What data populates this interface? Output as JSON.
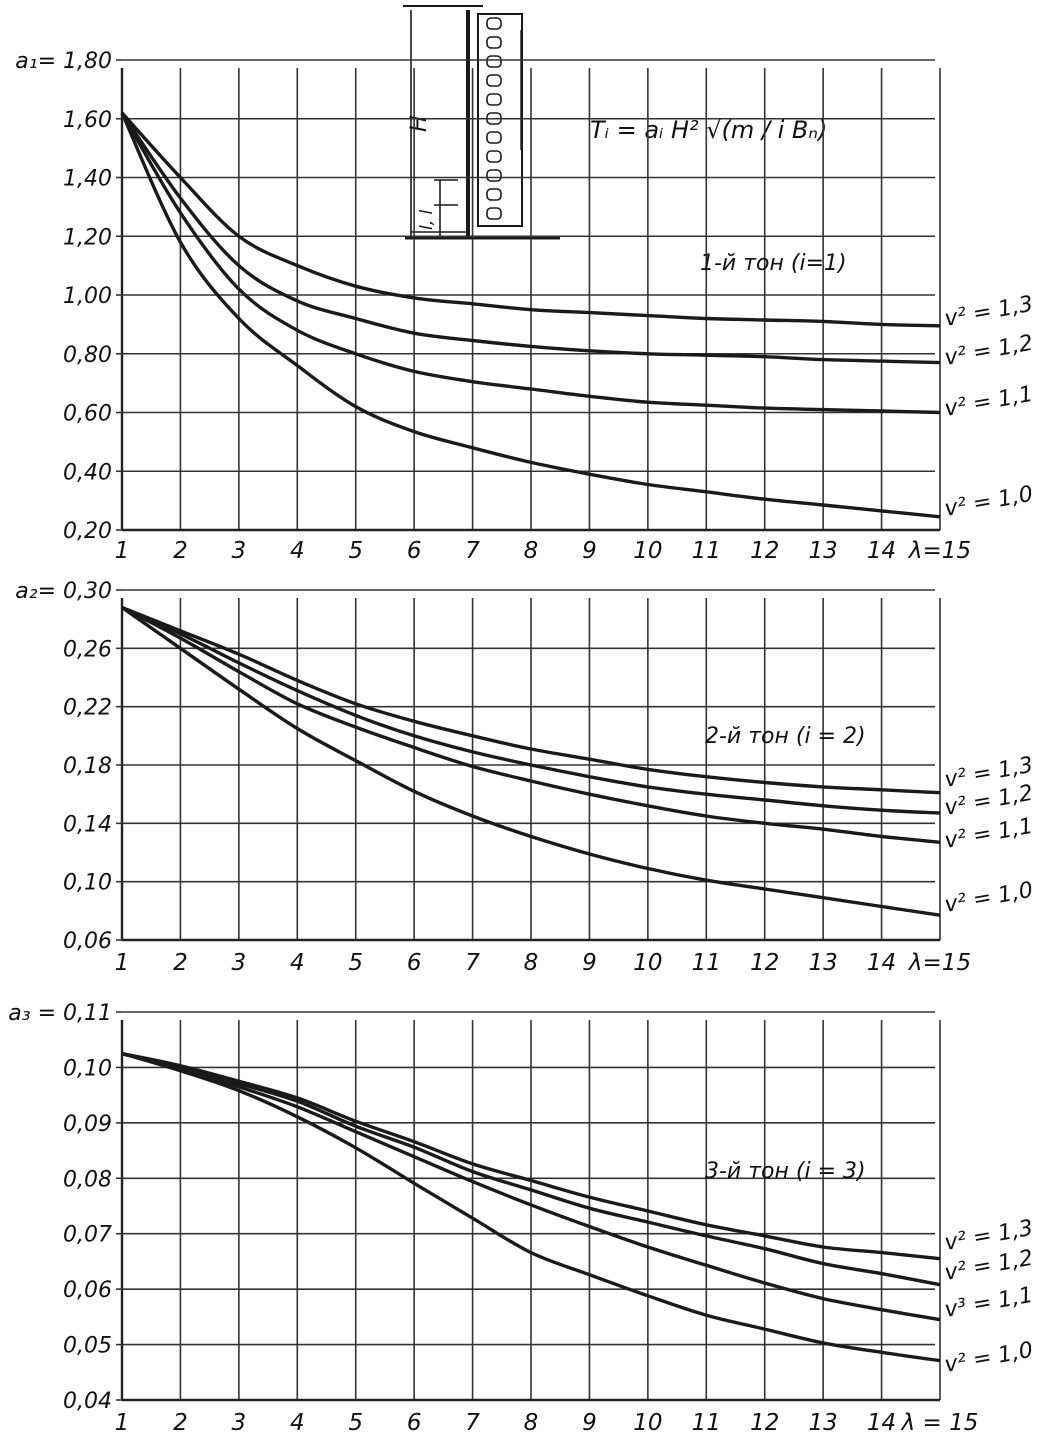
{
  "formula": "Tᵢ = aᵢ H² √(m / i Bₙ)",
  "inset": {
    "h_label": "H",
    "l_label": "l, l"
  },
  "chart_data": [
    {
      "type": "line",
      "title": "1-й тон (i=1)",
      "ylabel": "a₁",
      "xlabel": "λ",
      "x_ticks": [
        "1",
        "2",
        "3",
        "4",
        "5",
        "6",
        "7",
        "8",
        "9",
        "10",
        "11",
        "12",
        "13",
        "14",
        "λ=15"
      ],
      "y_ticks": [
        "0,20",
        "0,40",
        "0,60",
        "0,80",
        "1,00",
        "1,20",
        "1,40",
        "1,60",
        "a₁= 1,80"
      ],
      "ylim": [
        0.2,
        1.8
      ],
      "xlim": [
        1,
        15
      ],
      "grid": true,
      "x": [
        1,
        2,
        3,
        4,
        5,
        6,
        7,
        8,
        9,
        10,
        11,
        12,
        13,
        14,
        15
      ],
      "series": [
        {
          "name": "v² = 1,3",
          "values": [
            1.62,
            1.4,
            1.2,
            1.1,
            1.03,
            0.99,
            0.97,
            0.95,
            0.94,
            0.93,
            0.92,
            0.915,
            0.91,
            0.9,
            0.895
          ]
        },
        {
          "name": "v² = 1,2",
          "values": [
            1.62,
            1.33,
            1.1,
            0.98,
            0.92,
            0.87,
            0.845,
            0.825,
            0.81,
            0.8,
            0.795,
            0.79,
            0.78,
            0.775,
            0.77
          ]
        },
        {
          "name": "v² = 1,1",
          "values": [
            1.62,
            1.28,
            1.02,
            0.88,
            0.8,
            0.74,
            0.705,
            0.68,
            0.655,
            0.635,
            0.625,
            0.615,
            0.61,
            0.605,
            0.6
          ]
        },
        {
          "name": "v² = 1,0",
          "values": [
            1.62,
            1.18,
            0.92,
            0.76,
            0.62,
            0.535,
            0.48,
            0.43,
            0.39,
            0.355,
            0.33,
            0.305,
            0.285,
            0.265,
            0.245
          ]
        }
      ]
    },
    {
      "type": "line",
      "title": "2-й тон (i = 2)",
      "ylabel": "a₂",
      "xlabel": "λ",
      "x_ticks": [
        "1",
        "2",
        "3",
        "4",
        "5",
        "6",
        "7",
        "8",
        "9",
        "10",
        "11",
        "12",
        "13",
        "14",
        "λ=15"
      ],
      "y_ticks": [
        "0,06",
        "0,10",
        "0,14",
        "0,18",
        "0,22",
        "0,26",
        "a₂= 0,30"
      ],
      "ylim": [
        0.06,
        0.3
      ],
      "xlim": [
        1,
        15
      ],
      "grid": true,
      "x": [
        1,
        2,
        3,
        4,
        5,
        6,
        7,
        8,
        9,
        10,
        11,
        12,
        13,
        14,
        15
      ],
      "series": [
        {
          "name": "v² = 1,3",
          "values": [
            0.288,
            0.272,
            0.256,
            0.238,
            0.222,
            0.21,
            0.2,
            0.191,
            0.184,
            0.177,
            0.172,
            0.168,
            0.165,
            0.163,
            0.161
          ]
        },
        {
          "name": "v² = 1,2",
          "values": [
            0.288,
            0.27,
            0.25,
            0.231,
            0.214,
            0.2,
            0.189,
            0.18,
            0.172,
            0.165,
            0.16,
            0.156,
            0.152,
            0.149,
            0.147
          ]
        },
        {
          "name": "v² = 1,1",
          "values": [
            0.288,
            0.267,
            0.244,
            0.222,
            0.206,
            0.192,
            0.179,
            0.169,
            0.16,
            0.152,
            0.145,
            0.14,
            0.136,
            0.131,
            0.127
          ]
        },
        {
          "name": "v² = 1,0",
          "values": [
            0.288,
            0.26,
            0.232,
            0.205,
            0.183,
            0.162,
            0.145,
            0.131,
            0.119,
            0.109,
            0.101,
            0.095,
            0.089,
            0.083,
            0.077
          ]
        }
      ]
    },
    {
      "type": "line",
      "title": "3-й тон (i = 3)",
      "ylabel": "a₃",
      "xlabel": "λ",
      "x_ticks": [
        "1",
        "2",
        "3",
        "4",
        "5",
        "6",
        "7",
        "8",
        "9",
        "10",
        "11",
        "12",
        "13",
        "14",
        "λ = 15"
      ],
      "y_ticks": [
        "0,04",
        "0,05",
        "0,06",
        "0,07",
        "0,08",
        "0,09",
        "0,10",
        "a₃ = 0,11"
      ],
      "ylim": [
        0.04,
        0.11
      ],
      "xlim": [
        1,
        15
      ],
      "grid": true,
      "x": [
        1,
        2,
        3,
        4,
        5,
        6,
        7,
        8,
        9,
        10,
        11,
        12,
        13,
        14,
        15
      ],
      "series": [
        {
          "name": "v² = 1,3",
          "values": [
            0.1025,
            0.1003,
            0.0975,
            0.0945,
            0.0903,
            0.0866,
            0.0826,
            0.0796,
            0.0766,
            0.0741,
            0.0716,
            0.0696,
            0.0676,
            0.0666,
            0.0655
          ]
        },
        {
          "name": "v² = 1,2",
          "values": [
            0.1025,
            0.1001,
            0.0971,
            0.0939,
            0.0894,
            0.0856,
            0.0812,
            0.0779,
            0.0746,
            0.0721,
            0.0696,
            0.0673,
            0.0646,
            0.0628,
            0.0608
          ]
        },
        {
          "name": "v³ = 1,1",
          "values": [
            0.1025,
            0.0998,
            0.0965,
            0.0929,
            0.0884,
            0.0839,
            0.0794,
            0.0752,
            0.0713,
            0.0676,
            0.0643,
            0.0611,
            0.0583,
            0.0563,
            0.0545
          ]
        },
        {
          "name": "v² = 1,0",
          "values": [
            0.1025,
            0.0994,
            0.0958,
            0.0911,
            0.0855,
            0.0791,
            0.0728,
            0.0666,
            0.0626,
            0.0588,
            0.0553,
            0.0528,
            0.0503,
            0.0486,
            0.0471
          ]
        }
      ]
    }
  ]
}
